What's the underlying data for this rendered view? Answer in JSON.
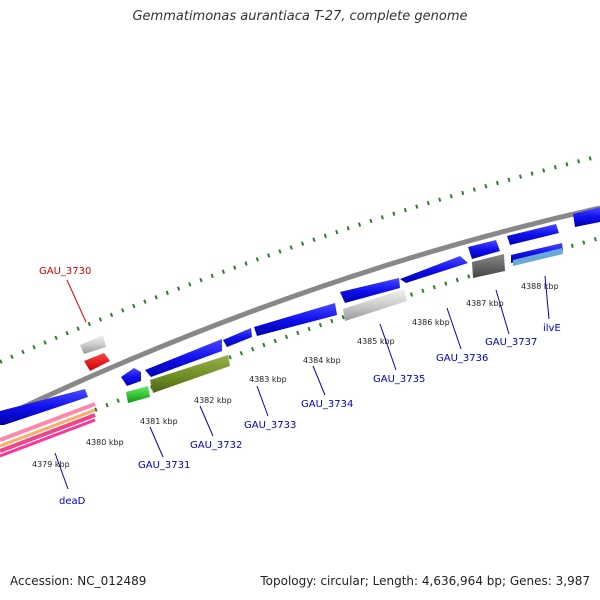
{
  "title": "Gemmatimonas aurantiaca T-27, complete genome",
  "footer": {
    "accession": "Accession: NC_012489",
    "stats": "Topology: circular; Length: 4,636,964 bp; Genes: 3,987"
  },
  "scale_labels": [
    "4379 kbp",
    "4380 kbp",
    "4381 kbp",
    "4382 kbp",
    "4383 kbp",
    "4384 kbp",
    "4385 kbp",
    "4386 kbp",
    "4387 kbp",
    "4388 kbp"
  ],
  "gene_labels": [
    "GAU_3730",
    "deaD",
    "GAU_3731",
    "GAU_3732",
    "GAU_3733",
    "GAU_3734",
    "GAU_3735",
    "GAU_3736",
    "GAU_3737",
    "ilvE"
  ],
  "colors": {
    "highlight_label": "#e00000",
    "gene_label": "#0000c8",
    "gene_forward": "#1a1aee",
    "gene_other": "#c8c8c8",
    "tick": "#2d7d2d",
    "backbone": "#888888"
  }
}
